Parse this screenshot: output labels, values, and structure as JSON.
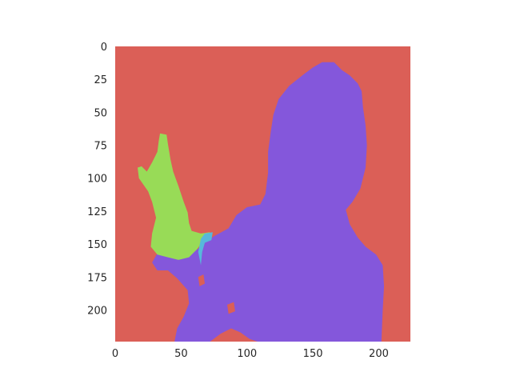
{
  "chart_data": {
    "type": "heatmap",
    "title": "",
    "xlabel": "",
    "ylabel": "",
    "image_size": [
      224,
      224
    ],
    "xlim": [
      0,
      224
    ],
    "ylim": [
      224,
      0
    ],
    "x_ticks": [
      "0",
      "50",
      "100",
      "150",
      "200"
    ],
    "y_ticks": [
      "0",
      "25",
      "50",
      "75",
      "100",
      "125",
      "150",
      "175",
      "200"
    ],
    "grid": false,
    "legend": "none",
    "classes": [
      {
        "label_id": 0,
        "color": "#db5f57"
      },
      {
        "label_id": 1,
        "color": "#8457db"
      },
      {
        "label_id": 2,
        "color": "#98db57"
      },
      {
        "label_id": 3,
        "color": "#57b8db"
      }
    ],
    "regions": [
      {
        "class_id": 1,
        "polygon": [
          [
            157,
            12
          ],
          [
            166,
            12
          ],
          [
            172,
            18
          ],
          [
            178,
            22
          ],
          [
            184,
            28
          ],
          [
            187,
            34
          ],
          [
            188,
            46
          ],
          [
            190,
            60
          ],
          [
            191,
            75
          ],
          [
            190,
            92
          ],
          [
            186,
            108
          ],
          [
            180,
            118
          ],
          [
            175,
            124
          ],
          [
            178,
            135
          ],
          [
            184,
            145
          ],
          [
            190,
            152
          ],
          [
            198,
            158
          ],
          [
            203,
            166
          ],
          [
            204,
            182
          ],
          [
            203,
            200
          ],
          [
            202,
            224
          ],
          [
            108,
            224
          ],
          [
            102,
            222
          ],
          [
            95,
            217
          ],
          [
            88,
            214
          ],
          [
            80,
            218
          ],
          [
            72,
            224
          ],
          [
            45,
            224
          ],
          [
            47,
            214
          ],
          [
            52,
            205
          ],
          [
            56,
            195
          ],
          [
            55,
            185
          ],
          [
            47,
            176
          ],
          [
            40,
            170
          ],
          [
            32,
            170
          ],
          [
            28,
            164
          ],
          [
            32,
            157
          ],
          [
            46,
            160
          ],
          [
            58,
            157
          ],
          [
            65,
            152
          ],
          [
            69,
            148
          ],
          [
            75,
            144
          ],
          [
            86,
            138
          ],
          [
            92,
            128
          ],
          [
            100,
            122
          ],
          [
            110,
            120
          ],
          [
            114,
            112
          ],
          [
            116,
            96
          ],
          [
            116,
            80
          ],
          [
            118,
            65
          ],
          [
            120,
            52
          ],
          [
            124,
            40
          ],
          [
            132,
            30
          ],
          [
            142,
            22
          ],
          [
            150,
            16
          ]
        ]
      },
      {
        "class_id": 2,
        "polygon": [
          [
            34,
            66
          ],
          [
            39,
            67
          ],
          [
            40,
            74
          ],
          [
            42,
            86
          ],
          [
            44,
            95
          ],
          [
            48,
            106
          ],
          [
            52,
            118
          ],
          [
            55,
            126
          ],
          [
            56,
            134
          ],
          [
            58,
            140
          ],
          [
            65,
            142
          ],
          [
            72,
            141
          ],
          [
            68,
            146
          ],
          [
            62,
            154
          ],
          [
            56,
            160
          ],
          [
            48,
            162
          ],
          [
            40,
            160
          ],
          [
            32,
            158
          ],
          [
            27,
            152
          ],
          [
            28,
            142
          ],
          [
            31,
            130
          ],
          [
            28,
            118
          ],
          [
            25,
            110
          ],
          [
            18,
            100
          ],
          [
            17,
            92
          ],
          [
            20,
            91
          ],
          [
            24,
            95
          ],
          [
            28,
            88
          ],
          [
            32,
            80
          ],
          [
            33,
            72
          ]
        ]
      },
      {
        "class_id": 0,
        "polygon": [
          [
            63,
            175
          ],
          [
            67,
            173
          ],
          [
            68,
            180
          ],
          [
            64,
            182
          ]
        ]
      },
      {
        "class_id": 0,
        "polygon": [
          [
            85,
            196
          ],
          [
            90,
            194
          ],
          [
            91,
            201
          ],
          [
            86,
            203
          ]
        ]
      },
      {
        "class_id": 3,
        "polygon": [
          [
            68,
            142
          ],
          [
            74,
            141
          ],
          [
            73,
            147
          ],
          [
            68,
            149
          ],
          [
            66,
            156
          ],
          [
            65,
            166
          ],
          [
            63,
            156
          ],
          [
            65,
            146
          ]
        ]
      }
    ]
  }
}
